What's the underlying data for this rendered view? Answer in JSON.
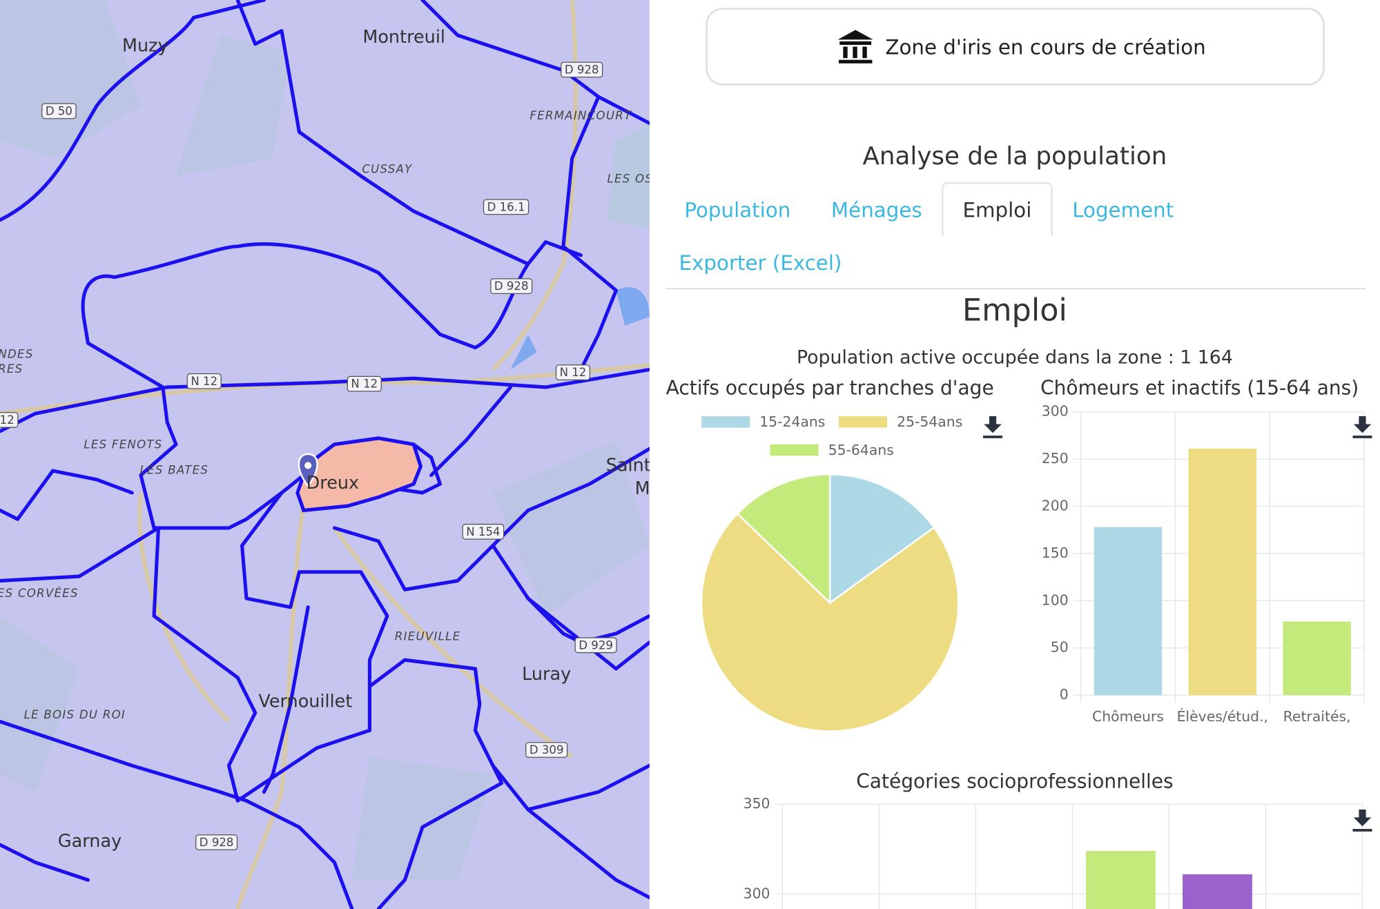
{
  "map": {
    "labels": [
      "Muzy",
      "Montreuil",
      "D 928",
      "D 50",
      "FERMAINCOURT",
      "CUSSAY",
      "LES OS",
      "D 16.1",
      "D 928",
      "N 12",
      "N 12",
      "N 12",
      "12",
      "LES FENOTS",
      "LES BATES",
      "Dreux",
      "Saint",
      "M",
      "N 154",
      "ES CORVÉES",
      "RIEUVILLE",
      "D 929",
      "Luray",
      "Vernouillet",
      "LE BOIS DU ROI",
      "D 309",
      "Garnay",
      "D 928",
      "NDES",
      "RES"
    ]
  },
  "header": {
    "button": "Zone d'iris en cours de création",
    "title": "Analyse de la population"
  },
  "tabs": [
    "Population",
    "Ménages",
    "Emploi",
    "Logement",
    "Exporter (Excel)"
  ],
  "section": {
    "title": "Emploi",
    "summary": "Population active occupée dans la zone : 1 164"
  },
  "charts": [
    {
      "type": "pie",
      "title": "Actifs occupés par tranches d'age",
      "categories": [
        "15-24ans",
        "25-54ans",
        "55-64ans"
      ],
      "values": [
        175,
        840,
        149
      ],
      "colors": [
        "#add8e6",
        "#eddc82",
        "#c5ea7c"
      ]
    },
    {
      "type": "bar",
      "title": "Chômeurs et inactifs (15-64 ans)",
      "categories": [
        "Chômeurs",
        "Élèves/étud.,",
        "Retraités,"
      ],
      "values": [
        178,
        261,
        78
      ],
      "colors": [
        "#add8e6",
        "#eddc82",
        "#c5ea7c"
      ],
      "ylim": [
        0,
        300
      ],
      "yticks": [
        0,
        50,
        100,
        150,
        200,
        250,
        300
      ],
      "grid": true
    },
    {
      "type": "bar",
      "title": "Catégories socioprofessionnelles",
      "categories": [
        null,
        null,
        null,
        null,
        null,
        null
      ],
      "values": [
        null,
        null,
        null,
        324,
        311,
        null
      ],
      "colors": [
        null,
        null,
        null,
        "#c5ea7c",
        "#9b62cc",
        null
      ],
      "ylim": [
        290,
        350
      ],
      "yticks": [
        300,
        350
      ],
      "grid": true
    }
  ]
}
